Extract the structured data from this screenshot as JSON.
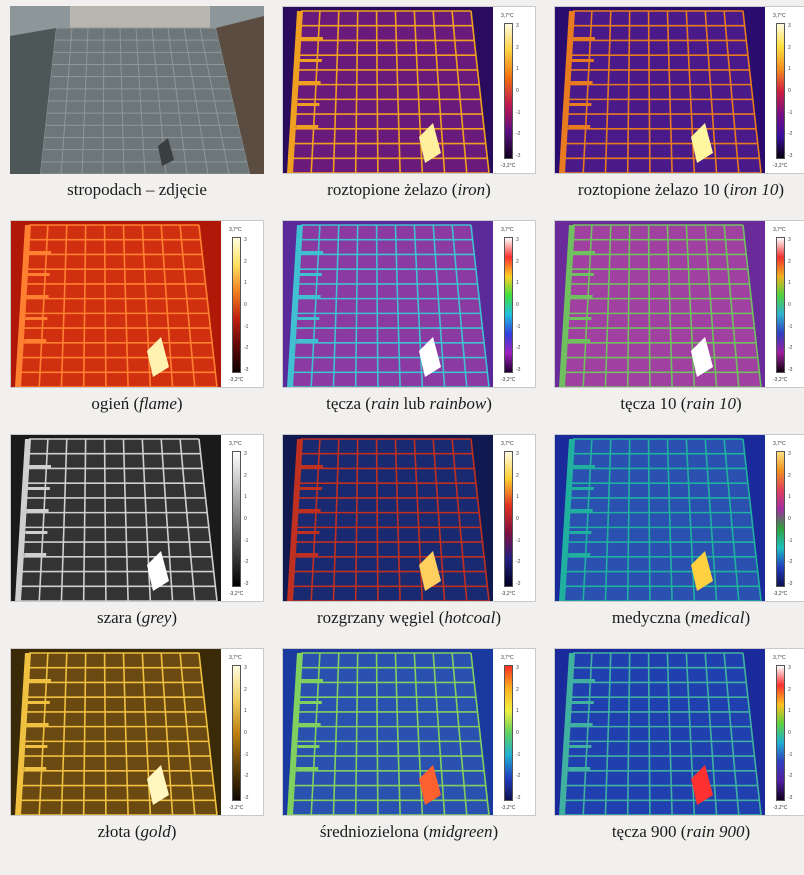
{
  "panels": [
    {
      "caption_plain": "stropodach – zdjęcie",
      "caption_italic": "",
      "caption_suffix": "",
      "palette": "photo"
    },
    {
      "caption_plain": "roztopione żelazo (",
      "caption_italic": "iron",
      "caption_suffix": ")",
      "palette": "iron",
      "scale_top": "3,7°C",
      "scale_bottom": "-3,2°C"
    },
    {
      "caption_plain": "roztopione żelazo 10 (",
      "caption_italic": "iron 10",
      "caption_suffix": ")",
      "palette": "iron10",
      "scale_top": "3,7°C",
      "scale_bottom": "-3,2°C"
    },
    {
      "caption_plain": "ogień (",
      "caption_italic": "flame",
      "caption_suffix": ")",
      "palette": "flame",
      "scale_top": "3,7°C",
      "scale_bottom": "-3,2°C"
    },
    {
      "caption_plain": "tęcza (",
      "caption_italic": "rain",
      "caption_mid": " lub ",
      "caption_italic2": "rainbow",
      "caption_suffix": ")",
      "palette": "rain",
      "scale_top": "3,7°C",
      "scale_bottom": "-3,2°C"
    },
    {
      "caption_plain": "tęcza 10 (",
      "caption_italic": "rain 10",
      "caption_suffix": ")",
      "palette": "rain10",
      "scale_top": "3,7°C",
      "scale_bottom": "-3,2°C"
    },
    {
      "caption_plain": "szara (",
      "caption_italic": "grey",
      "caption_suffix": ")",
      "palette": "grey",
      "scale_top": "3,7°C",
      "scale_bottom": "-3,2°C"
    },
    {
      "caption_plain": "rozgrzany węgiel (",
      "caption_italic": "hotcoal",
      "caption_suffix": ")",
      "palette": "hotcoal",
      "scale_top": "3,7°C",
      "scale_bottom": "-3,2°C"
    },
    {
      "caption_plain": "medyczna (",
      "caption_italic": "medical",
      "caption_suffix": ")",
      "palette": "medical",
      "scale_top": "3,7°C",
      "scale_bottom": "-3,2°C"
    },
    {
      "caption_plain": "złota (",
      "caption_italic": "gold",
      "caption_suffix": ")",
      "palette": "gold",
      "scale_top": "3,7°C",
      "scale_bottom": "-3,2°C"
    },
    {
      "caption_plain": "średniozielona (",
      "caption_italic": "midgreen",
      "caption_suffix": ")",
      "palette": "midgreen",
      "scale_top": "3,7°C",
      "scale_bottom": "-3,2°C"
    },
    {
      "caption_plain": "tęcza 900 (",
      "caption_italic": "rain 900",
      "caption_suffix": ")",
      "palette": "rain900",
      "scale_top": "3,7°C",
      "scale_bottom": "-3,2°C"
    }
  ],
  "scale_ticks": [
    "3",
    "2",
    "1",
    "0",
    "-1",
    "-2",
    "-3"
  ],
  "palettes": {
    "iron": {
      "bg": "#2a0c5e",
      "bg2": "#6a1a7a",
      "line": "#f0a020",
      "hot": "#fff0a0",
      "bar": [
        "#fffbe0",
        "#ffd040",
        "#f07010",
        "#c01850",
        "#5a1080",
        "#100020"
      ]
    },
    "iron10": {
      "bg": "#2a0c6e",
      "bg2": "#4a1a8a",
      "line": "#e87a20",
      "hot": "#fff6a0",
      "bar": [
        "#fffbe0",
        "#ffe040",
        "#f59020",
        "#d02040",
        "#7a1080",
        "#3a10a0",
        "#080010"
      ]
    },
    "flame": {
      "bg": "#b01808",
      "bg2": "#d03010",
      "line": "#ff8030",
      "hot": "#fff2b0",
      "bar": [
        "#fffde0",
        "#ffe060",
        "#f08020",
        "#c02010",
        "#600808",
        "#100000"
      ]
    },
    "rain": {
      "bg": "#5a2a9a",
      "bg2": "#8a3aa0",
      "line": "#40c0d0",
      "hot": "#ffffff",
      "bar": [
        "#ffffff",
        "#ff3030",
        "#ffd020",
        "#40e040",
        "#20c0e0",
        "#3040e0",
        "#a020c0",
        "#200030"
      ]
    },
    "rain10": {
      "bg": "#6a2a9a",
      "bg2": "#a040a0",
      "line": "#70c060",
      "hot": "#ffffff",
      "bar": [
        "#ffffff",
        "#f03030",
        "#f0b020",
        "#50d040",
        "#30b0d0",
        "#3040c0",
        "#a020a0",
        "#100010"
      ]
    },
    "grey": {
      "bg": "#1a1a1a",
      "bg2": "#333333",
      "line": "#cfcfcf",
      "hot": "#ffffff",
      "bar": [
        "#ffffff",
        "#c0c0c0",
        "#808080",
        "#404040",
        "#000000"
      ]
    },
    "hotcoal": {
      "bg": "#101a50",
      "bg2": "#1a2a70",
      "line": "#c03020",
      "hot": "#ffd060",
      "bar": [
        "#fffbe0",
        "#ffd030",
        "#e03020",
        "#801040",
        "#202080",
        "#000020"
      ]
    },
    "medical": {
      "bg": "#1a2a9a",
      "bg2": "#2a50b0",
      "line": "#20b0a0",
      "hot": "#ffd040",
      "bar": [
        "#ffe080",
        "#f09020",
        "#e04060",
        "#a030a0",
        "#30a040",
        "#20c0c0",
        "#2040c0",
        "#101050"
      ]
    },
    "gold": {
      "bg": "#3a2a08",
      "bg2": "#6a4a10",
      "line": "#f0c040",
      "hot": "#fff6c0",
      "bar": [
        "#fffbe0",
        "#f0d060",
        "#c08010",
        "#604008",
        "#100800"
      ]
    },
    "midgreen": {
      "bg": "#1a3aa0",
      "bg2": "#2a50b0",
      "line": "#80d060",
      "hot": "#ff6030",
      "bar": [
        "#ff3020",
        "#ffb020",
        "#f0f040",
        "#60d060",
        "#20b0d0",
        "#2040c0",
        "#101050"
      ]
    },
    "rain900": {
      "bg": "#1a2a9a",
      "bg2": "#2040b0",
      "line": "#40b0a0",
      "hot": "#ff3030",
      "bar": [
        "#ffffff",
        "#ff3030",
        "#ffc020",
        "#60d040",
        "#20b0d0",
        "#3040c0",
        "#5020a0",
        "#100020"
      ]
    }
  }
}
